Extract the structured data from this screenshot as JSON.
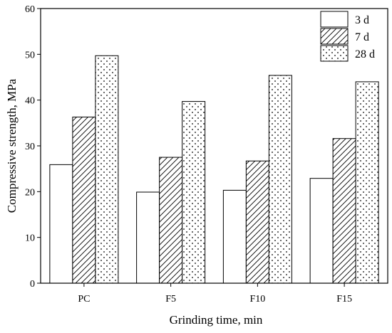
{
  "chart_data": {
    "type": "bar",
    "title": "",
    "xlabel": "Grinding time, min",
    "ylabel": "Compressive strength, MPa",
    "categories": [
      "PC",
      "F5",
      "F10",
      "F15"
    ],
    "ylim": [
      0,
      60
    ],
    "yticks": [
      0,
      10,
      20,
      30,
      40,
      50,
      60
    ],
    "grid": false,
    "legend_position": "top-right",
    "series": [
      {
        "name": "3 d",
        "pattern": "none",
        "values": [
          25.9,
          19.9,
          20.3,
          22.9
        ]
      },
      {
        "name": "7 d",
        "pattern": "diagonal-hatch",
        "values": [
          36.3,
          27.5,
          26.7,
          31.6
        ]
      },
      {
        "name": "28 d",
        "pattern": "dots",
        "values": [
          49.7,
          39.7,
          45.4,
          44.0
        ]
      }
    ],
    "colors": {
      "bar_fill": "#ffffff",
      "stroke": "#000000",
      "axis": "#000000"
    }
  }
}
